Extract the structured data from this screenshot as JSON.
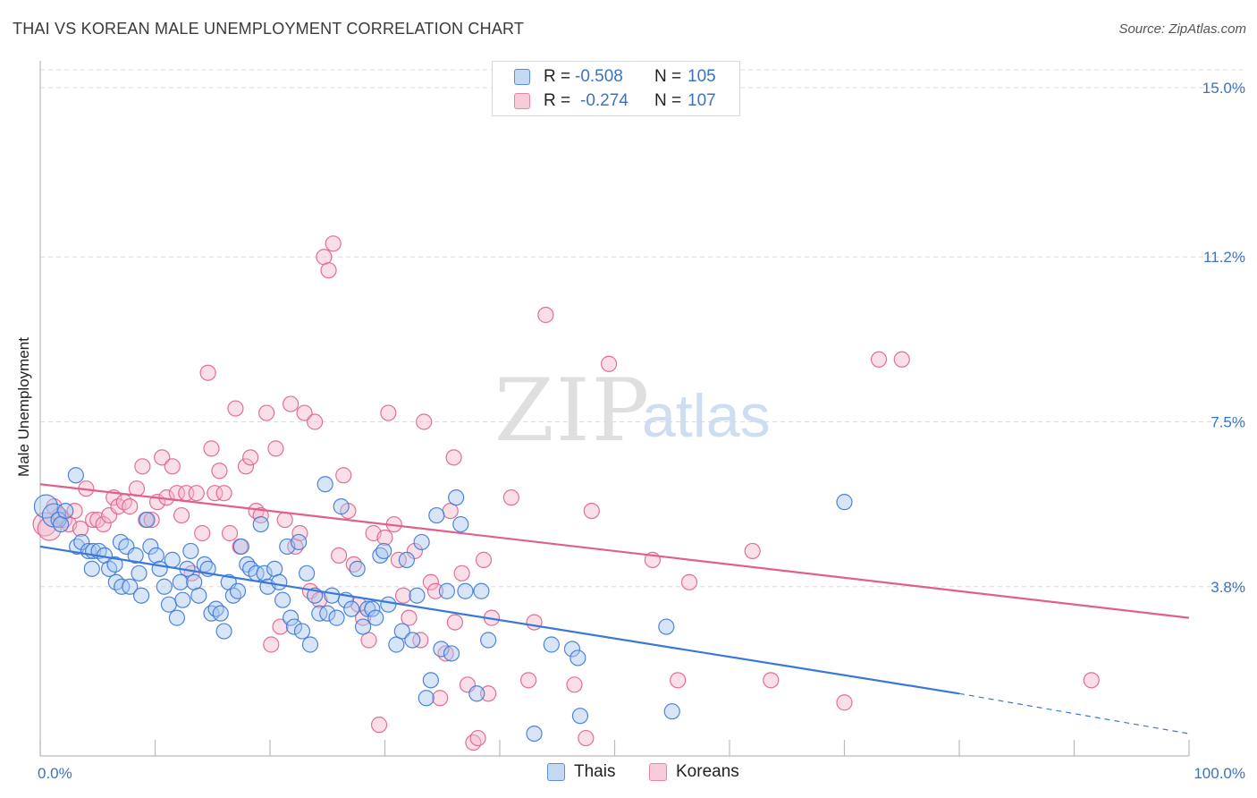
{
  "title": "THAI VS KOREAN MALE UNEMPLOYMENT CORRELATION CHART",
  "source": "Source: ZipAtlas.com",
  "watermark": {
    "zip": "ZIP",
    "atlas": "atlas"
  },
  "legend": {
    "rows": [
      {
        "r_label": "R =",
        "r_value": "-0.508",
        "n_label": "N =",
        "n_value": "105",
        "color": "#5b8fd6",
        "fill": "#c5d8f2"
      },
      {
        "r_label": "R =",
        "r_value": "-0.274",
        "n_label": "N =",
        "n_value": "107",
        "color": "#e884a6",
        "fill": "#f8cbd9"
      }
    ]
  },
  "bottom_legend": [
    {
      "label": "Thais",
      "color": "#5b8fd6",
      "fill": "#c5d8f2"
    },
    {
      "label": "Koreans",
      "color": "#e884a6",
      "fill": "#f8cbd9"
    }
  ],
  "chart_data": {
    "type": "scatter",
    "title": "THAI VS KOREAN MALE UNEMPLOYMENT CORRELATION CHART",
    "xlabel": "",
    "ylabel": "Male Unemployment",
    "xlim": [
      0,
      100
    ],
    "ylim": [
      0,
      15
    ],
    "x_tick_labels": [
      "0.0%",
      "100.0%"
    ],
    "y_ticks": [
      3.8,
      7.5,
      11.2,
      15.0
    ],
    "y_tick_labels": [
      "3.8%",
      "7.5%",
      "11.2%",
      "15.0%"
    ],
    "grid": true,
    "legend_position": "top-center",
    "series": [
      {
        "name": "Thais",
        "color": "#3a78d8",
        "fill": "#a9c6ee",
        "r": -0.508,
        "n": 105,
        "trend": {
          "x0": 0,
          "y0": 4.7,
          "x1": 80,
          "y1": 1.4,
          "dashed_to_x": 100,
          "dashed_to_y": 0.5
        },
        "points": [
          [
            0.5,
            5.6
          ],
          [
            1.2,
            5.4
          ],
          [
            1.6,
            5.3
          ],
          [
            1.8,
            5.2
          ],
          [
            2.2,
            5.5
          ],
          [
            3.2,
            4.7
          ],
          [
            3.6,
            4.8
          ],
          [
            3.1,
            6.3
          ],
          [
            4.2,
            4.6
          ],
          [
            4.6,
            4.6
          ],
          [
            5.1,
            4.6
          ],
          [
            5.6,
            4.5
          ],
          [
            4.5,
            4.2
          ],
          [
            6.0,
            4.2
          ],
          [
            6.5,
            4.3
          ],
          [
            6.6,
            3.9
          ],
          [
            7.0,
            4.8
          ],
          [
            7.5,
            4.7
          ],
          [
            7.1,
            3.8
          ],
          [
            7.8,
            3.8
          ],
          [
            8.3,
            4.5
          ],
          [
            8.6,
            4.1
          ],
          [
            8.8,
            3.6
          ],
          [
            9.3,
            5.3
          ],
          [
            9.6,
            4.7
          ],
          [
            10.1,
            4.5
          ],
          [
            10.4,
            4.2
          ],
          [
            10.8,
            3.8
          ],
          [
            11.2,
            3.4
          ],
          [
            11.5,
            4.4
          ],
          [
            11.9,
            3.1
          ],
          [
            12.2,
            3.9
          ],
          [
            12.4,
            3.5
          ],
          [
            12.8,
            4.2
          ],
          [
            13.1,
            4.6
          ],
          [
            13.4,
            3.9
          ],
          [
            13.8,
            3.6
          ],
          [
            14.3,
            4.3
          ],
          [
            14.6,
            4.2
          ],
          [
            14.9,
            3.2
          ],
          [
            15.3,
            3.3
          ],
          [
            15.7,
            3.2
          ],
          [
            16.0,
            2.8
          ],
          [
            16.4,
            3.9
          ],
          [
            16.8,
            3.6
          ],
          [
            17.2,
            3.7
          ],
          [
            17.5,
            4.7
          ],
          [
            18.0,
            4.3
          ],
          [
            18.3,
            4.2
          ],
          [
            18.8,
            4.1
          ],
          [
            19.2,
            5.2
          ],
          [
            19.5,
            4.1
          ],
          [
            19.8,
            3.8
          ],
          [
            20.4,
            4.2
          ],
          [
            20.8,
            3.9
          ],
          [
            21.1,
            3.5
          ],
          [
            21.5,
            4.7
          ],
          [
            21.8,
            3.1
          ],
          [
            22.1,
            2.9
          ],
          [
            22.5,
            4.8
          ],
          [
            22.8,
            2.8
          ],
          [
            23.2,
            4.1
          ],
          [
            23.5,
            2.5
          ],
          [
            23.9,
            3.6
          ],
          [
            24.3,
            3.2
          ],
          [
            24.8,
            6.1
          ],
          [
            25.0,
            3.2
          ],
          [
            25.4,
            3.6
          ],
          [
            25.8,
            3.1
          ],
          [
            26.2,
            5.6
          ],
          [
            26.6,
            3.5
          ],
          [
            27.1,
            3.3
          ],
          [
            27.6,
            4.2
          ],
          [
            28.1,
            2.9
          ],
          [
            28.5,
            3.3
          ],
          [
            28.9,
            3.3
          ],
          [
            29.2,
            3.1
          ],
          [
            29.6,
            4.5
          ],
          [
            29.9,
            4.6
          ],
          [
            30.3,
            3.4
          ],
          [
            31.0,
            2.5
          ],
          [
            31.5,
            2.8
          ],
          [
            31.9,
            4.4
          ],
          [
            32.4,
            2.6
          ],
          [
            32.8,
            3.6
          ],
          [
            33.2,
            4.8
          ],
          [
            33.6,
            1.3
          ],
          [
            34.0,
            1.7
          ],
          [
            34.5,
            5.4
          ],
          [
            34.9,
            2.4
          ],
          [
            35.4,
            3.7
          ],
          [
            35.8,
            2.3
          ],
          [
            36.2,
            5.8
          ],
          [
            36.6,
            5.2
          ],
          [
            37.0,
            3.7
          ],
          [
            38.0,
            1.4
          ],
          [
            38.4,
            3.7
          ],
          [
            39.0,
            2.6
          ],
          [
            43.0,
            0.5
          ],
          [
            44.5,
            2.5
          ],
          [
            46.3,
            2.4
          ],
          [
            46.8,
            2.2
          ],
          [
            47.0,
            0.9
          ],
          [
            54.5,
            2.9
          ],
          [
            55.0,
            1.0
          ],
          [
            70.0,
            5.7
          ]
        ]
      },
      {
        "name": "Koreans",
        "color": "#e0608a",
        "fill": "#f5b9cc",
        "r": -0.274,
        "n": 107,
        "trend": {
          "x0": 0,
          "y0": 6.1,
          "x1": 100,
          "y1": 3.1
        },
        "points": [
          [
            0.4,
            5.2
          ],
          [
            0.8,
            5.1
          ],
          [
            1.2,
            5.6
          ],
          [
            1.7,
            5.4
          ],
          [
            2.1,
            5.3
          ],
          [
            2.5,
            5.2
          ],
          [
            3.0,
            5.5
          ],
          [
            3.5,
            5.1
          ],
          [
            4.0,
            6.0
          ],
          [
            4.6,
            5.3
          ],
          [
            5.0,
            5.3
          ],
          [
            5.5,
            5.2
          ],
          [
            6.0,
            5.4
          ],
          [
            6.4,
            5.8
          ],
          [
            6.8,
            5.6
          ],
          [
            7.3,
            5.7
          ],
          [
            7.8,
            5.6
          ],
          [
            8.4,
            6.0
          ],
          [
            8.9,
            6.5
          ],
          [
            9.2,
            5.3
          ],
          [
            9.7,
            5.3
          ],
          [
            10.2,
            5.7
          ],
          [
            10.6,
            6.7
          ],
          [
            11.0,
            5.8
          ],
          [
            11.5,
            6.5
          ],
          [
            11.9,
            5.9
          ],
          [
            12.3,
            5.4
          ],
          [
            12.7,
            5.9
          ],
          [
            13.2,
            4.1
          ],
          [
            13.6,
            5.9
          ],
          [
            14.1,
            5.0
          ],
          [
            14.6,
            8.6
          ],
          [
            14.9,
            6.9
          ],
          [
            15.2,
            5.9
          ],
          [
            15.6,
            6.4
          ],
          [
            16.0,
            5.9
          ],
          [
            16.5,
            5.0
          ],
          [
            17.0,
            7.8
          ],
          [
            17.4,
            4.7
          ],
          [
            17.9,
            6.5
          ],
          [
            18.3,
            6.7
          ],
          [
            18.8,
            5.5
          ],
          [
            19.2,
            5.4
          ],
          [
            19.7,
            7.7
          ],
          [
            20.1,
            2.5
          ],
          [
            20.5,
            6.9
          ],
          [
            20.9,
            2.9
          ],
          [
            21.3,
            5.3
          ],
          [
            21.8,
            7.9
          ],
          [
            22.2,
            4.7
          ],
          [
            22.6,
            5.0
          ],
          [
            23.0,
            7.7
          ],
          [
            23.5,
            3.7
          ],
          [
            23.9,
            7.5
          ],
          [
            24.3,
            3.5
          ],
          [
            24.7,
            11.2
          ],
          [
            25.1,
            10.9
          ],
          [
            25.5,
            11.5
          ],
          [
            26.0,
            4.5
          ],
          [
            26.4,
            6.3
          ],
          [
            26.8,
            5.5
          ],
          [
            27.3,
            4.3
          ],
          [
            27.7,
            3.4
          ],
          [
            28.1,
            3.1
          ],
          [
            28.6,
            2.6
          ],
          [
            29.0,
            5.0
          ],
          [
            29.5,
            0.7
          ],
          [
            30.0,
            4.9
          ],
          [
            30.3,
            7.7
          ],
          [
            30.8,
            5.2
          ],
          [
            31.2,
            4.4
          ],
          [
            31.6,
            3.6
          ],
          [
            32.1,
            3.1
          ],
          [
            32.6,
            4.6
          ],
          [
            33.1,
            2.6
          ],
          [
            33.4,
            7.5
          ],
          [
            34.0,
            3.9
          ],
          [
            34.4,
            3.7
          ],
          [
            34.8,
            1.3
          ],
          [
            35.3,
            2.3
          ],
          [
            35.7,
            5.5
          ],
          [
            36.1,
            3.0
          ],
          [
            36.7,
            4.1
          ],
          [
            37.2,
            1.6
          ],
          [
            37.7,
            0.3
          ],
          [
            38.1,
            0.4
          ],
          [
            38.6,
            4.4
          ],
          [
            39.0,
            1.4
          ],
          [
            39.3,
            3.1
          ],
          [
            41.0,
            5.8
          ],
          [
            42.5,
            1.7
          ],
          [
            43.0,
            3.0
          ],
          [
            44.0,
            9.9
          ],
          [
            46.5,
            1.6
          ],
          [
            47.5,
            0.4
          ],
          [
            48.0,
            5.5
          ],
          [
            49.5,
            8.8
          ],
          [
            53.3,
            4.4
          ],
          [
            55.5,
            1.7
          ],
          [
            56.5,
            3.9
          ],
          [
            62.0,
            4.6
          ],
          [
            63.6,
            1.7
          ],
          [
            70.0,
            1.2
          ],
          [
            73.0,
            8.9
          ],
          [
            75.0,
            8.9
          ],
          [
            91.5,
            1.7
          ],
          [
            36.0,
            6.7
          ]
        ]
      }
    ]
  }
}
